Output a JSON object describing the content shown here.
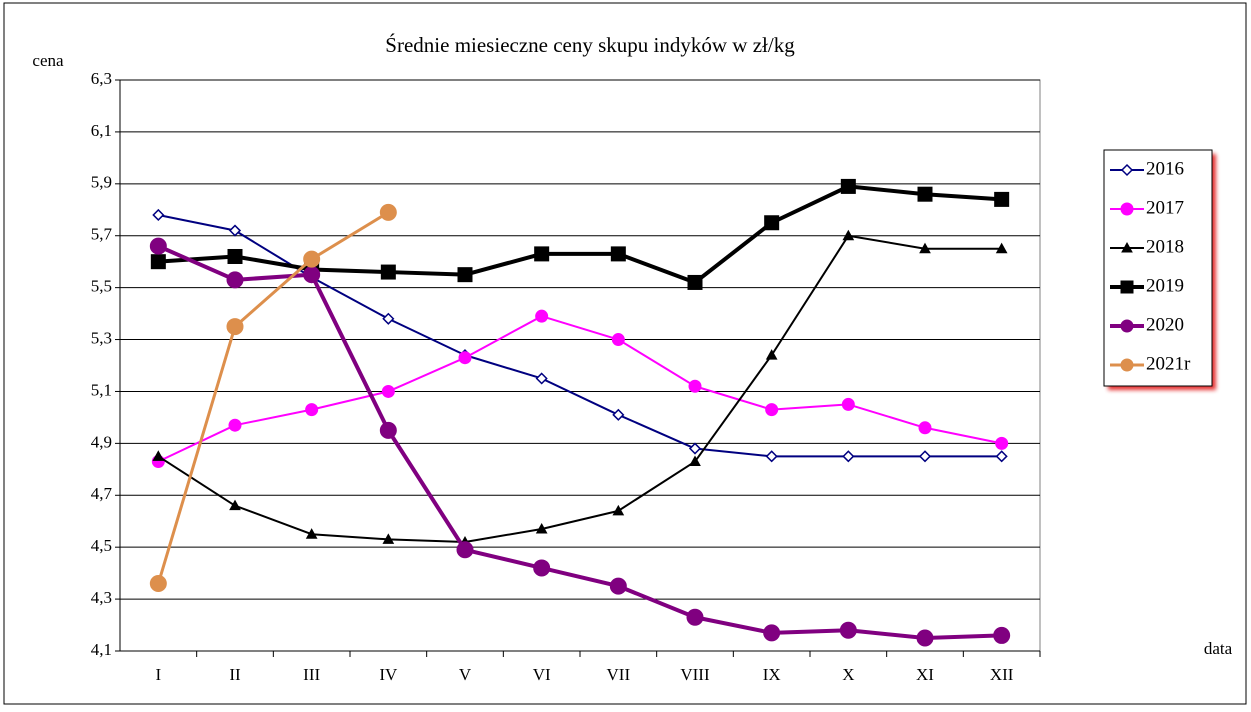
{
  "chart_data": {
    "type": "line",
    "title": "Średnie miesieczne ceny skupu indyków w zł/kg",
    "y_label": "cena",
    "x_label": "data",
    "categories": [
      "I",
      "II",
      "III",
      "IV",
      "V",
      "VI",
      "VII",
      "VIII",
      "IX",
      "X",
      "XI",
      "XII"
    ],
    "ylim": [
      4.1,
      6.3
    ],
    "yticks": [
      {
        "value": 4.1,
        "label": "4,1"
      },
      {
        "value": 4.3,
        "label": "4,3"
      },
      {
        "value": 4.5,
        "label": "4,5"
      },
      {
        "value": 4.7,
        "label": "4,7"
      },
      {
        "value": 4.9,
        "label": "4,9"
      },
      {
        "value": 5.1,
        "label": "5,1"
      },
      {
        "value": 5.3,
        "label": "5,3"
      },
      {
        "value": 5.5,
        "label": "5,5"
      },
      {
        "value": 5.7,
        "label": "5,7"
      },
      {
        "value": 5.9,
        "label": "5,9"
      },
      {
        "value": 6.1,
        "label": "6,1"
      },
      {
        "value": 6.3,
        "label": "6,3"
      }
    ],
    "grid": true,
    "legend": "right",
    "series": [
      {
        "name": "2016",
        "color": "#000080",
        "marker": "diamond",
        "values": [
          5.78,
          5.72,
          5.54,
          5.38,
          5.24,
          5.15,
          5.01,
          4.88,
          4.85,
          4.85,
          4.85,
          4.85
        ]
      },
      {
        "name": "2017",
        "color": "#ff00ff",
        "marker": "circle",
        "values": [
          4.83,
          4.97,
          5.03,
          5.1,
          5.23,
          5.39,
          5.3,
          5.12,
          5.03,
          5.05,
          4.96,
          4.9
        ]
      },
      {
        "name": "2018",
        "color": "#000000",
        "marker": "triangle",
        "values": [
          4.85,
          4.66,
          4.55,
          4.53,
          4.52,
          4.57,
          4.64,
          4.83,
          5.24,
          5.7,
          5.65,
          5.65
        ]
      },
      {
        "name": "2019",
        "color": "#000000",
        "marker": "square",
        "values": [
          5.6,
          5.62,
          5.57,
          5.56,
          5.55,
          5.63,
          5.63,
          5.52,
          5.75,
          5.89,
          5.86,
          5.84
        ]
      },
      {
        "name": "2020",
        "color": "#800080",
        "marker": "circle",
        "values": [
          5.66,
          5.53,
          5.55,
          4.95,
          4.49,
          4.42,
          4.35,
          4.23,
          4.17,
          4.18,
          4.15,
          4.16
        ]
      },
      {
        "name": "2021r",
        "color": "#dd8f4c",
        "marker": "circle",
        "values": [
          4.36,
          5.35,
          5.61,
          5.79,
          null,
          null,
          null,
          null,
          null,
          null,
          null,
          null
        ]
      }
    ]
  }
}
